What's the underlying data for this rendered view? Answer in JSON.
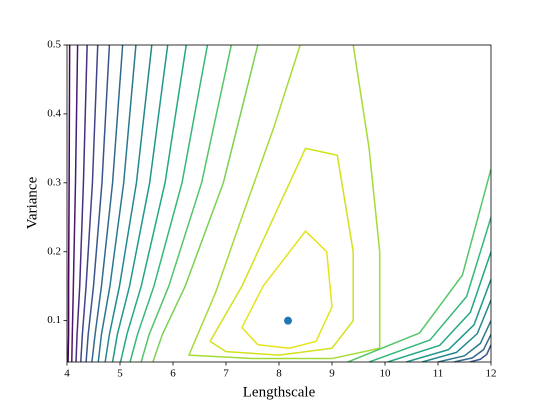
{
  "chart_data": {
    "type": "contour",
    "xlabel": "Lengthscale",
    "ylabel": "Variance",
    "xlim": [
      4,
      12
    ],
    "ylim": [
      0.04,
      0.5
    ],
    "xticks": [
      4,
      5,
      6,
      7,
      8,
      9,
      10,
      11,
      12
    ],
    "yticks": [
      0.1,
      0.2,
      0.3,
      0.4,
      0.5
    ],
    "contours": [
      {
        "color": "#440154",
        "x": [
          4.05,
          4.04,
          4.03,
          4.03,
          4.02
        ],
        "y": [
          0.5,
          0.3,
          0.15,
          0.08,
          0.04
        ]
      },
      {
        "color": "#481a6c",
        "x": [
          4.2,
          4.16,
          4.12,
          4.1,
          4.09
        ],
        "y": [
          0.5,
          0.3,
          0.15,
          0.08,
          0.04
        ]
      },
      {
        "color": "#472f7d",
        "x": [
          4.38,
          4.31,
          4.24,
          4.19,
          4.17
        ],
        "y": [
          0.5,
          0.3,
          0.15,
          0.08,
          0.04
        ]
      },
      {
        "color": "#414487",
        "x": [
          4.58,
          4.48,
          4.36,
          4.29,
          4.26
        ],
        "y": [
          0.5,
          0.3,
          0.15,
          0.08,
          0.04
        ]
      },
      {
        "color": "#39568c",
        "x": [
          4.8,
          4.66,
          4.5,
          4.4,
          4.36
        ],
        "y": [
          0.5,
          0.3,
          0.15,
          0.08,
          0.04
        ]
      },
      {
        "color": "#31688e",
        "x": [
          5.05,
          4.86,
          4.65,
          4.53,
          4.47
        ],
        "y": [
          0.5,
          0.3,
          0.15,
          0.08,
          0.04
        ]
      },
      {
        "color": "#2a788e",
        "x": [
          5.3,
          5.07,
          4.81,
          4.65,
          4.59
        ],
        "y": [
          0.5,
          0.3,
          0.15,
          0.08,
          0.04
        ]
      },
      {
        "color": "#23888e",
        "x": [
          5.6,
          5.31,
          4.99,
          4.8,
          4.72
        ],
        "y": [
          0.5,
          0.3,
          0.15,
          0.08,
          0.04
        ]
      },
      {
        "color": "#1f988b",
        "x": [
          5.9,
          5.56,
          5.18,
          4.95,
          4.86
        ],
        "y": [
          0.5,
          0.3,
          0.15,
          0.08,
          0.04
        ]
      },
      {
        "color": "#22a884",
        "x": [
          6.25,
          5.85,
          5.4,
          5.13,
          5.01
        ],
        "y": [
          0.5,
          0.3,
          0.15,
          0.08,
          0.04
        ]
      },
      {
        "color": "#35b779",
        "x": [
          6.65,
          6.17,
          5.64,
          5.33,
          5.19
        ],
        "y": [
          0.5,
          0.3,
          0.15,
          0.08,
          0.04
        ]
      },
      {
        "color": "#54c568",
        "x": [
          7.1,
          6.54,
          5.92,
          5.55,
          5.4
        ],
        "y": [
          0.5,
          0.3,
          0.15,
          0.08,
          0.04
        ]
      },
      {
        "color": "#7ad151",
        "x": [
          7.6,
          6.95,
          6.23,
          5.8,
          5.62
        ],
        "y": [
          0.5,
          0.3,
          0.15,
          0.08,
          0.04
        ]
      },
      {
        "color": "#a5db36",
        "x": [
          8.4,
          7.9,
          7.3,
          6.8,
          6.3,
          7.5,
          9.0,
          9.9,
          9.9,
          9.7,
          9.4
        ],
        "y": [
          0.5,
          0.38,
          0.25,
          0.14,
          0.05,
          0.045,
          0.045,
          0.06,
          0.2,
          0.35,
          0.5
        ]
      },
      {
        "color": "#d2e21b",
        "x": [
          6.7,
          7.3,
          7.9,
          8.5,
          9.1,
          9.4,
          9.4,
          9.0,
          8.0,
          7.0,
          6.7
        ],
        "y": [
          0.07,
          0.15,
          0.25,
          0.35,
          0.34,
          0.2,
          0.1,
          0.06,
          0.05,
          0.055,
          0.07
        ]
      },
      {
        "color": "#e5e419",
        "x": [
          7.3,
          7.7,
          8.5,
          8.9,
          9.0,
          8.7,
          8.2,
          7.6,
          7.3
        ],
        "y": [
          0.09,
          0.15,
          0.23,
          0.2,
          0.12,
          0.07,
          0.06,
          0.065,
          0.09
        ]
      },
      {
        "color": "#54c568",
        "x": [
          9.3,
          10.65,
          11.46,
          12
        ],
        "y": [
          0.04,
          0.082,
          0.166,
          0.32
        ]
      },
      {
        "color": "#35b779",
        "x": [
          9.7,
          10.85,
          11.54,
          12
        ],
        "y": [
          0.04,
          0.072,
          0.135,
          0.25
        ]
      },
      {
        "color": "#22a884",
        "x": [
          10.05,
          11.03,
          11.61,
          12
        ],
        "y": [
          0.04,
          0.064,
          0.112,
          0.2
        ]
      },
      {
        "color": "#1f988b",
        "x": [
          10.4,
          11.2,
          11.68,
          12
        ],
        "y": [
          0.04,
          0.058,
          0.094,
          0.16
        ]
      },
      {
        "color": "#23888e",
        "x": [
          10.7,
          11.35,
          11.74,
          12
        ],
        "y": [
          0.04,
          0.054,
          0.081,
          0.13
        ]
      },
      {
        "color": "#2a788e",
        "x": [
          11.0,
          11.5,
          11.8,
          12
        ],
        "y": [
          0.04,
          0.049,
          0.067,
          0.1
        ]
      },
      {
        "color": "#31688e",
        "x": [
          11.3,
          11.65,
          11.86,
          12
        ],
        "y": [
          0.04,
          0.046,
          0.058,
          0.08
        ]
      },
      {
        "color": "#39568c",
        "x": [
          11.6,
          11.8,
          11.92,
          12
        ],
        "y": [
          0.04,
          0.044,
          0.051,
          0.065
        ]
      }
    ],
    "points": {
      "color": "#1f77b4",
      "x": [
        8.17
      ],
      "y": [
        0.1
      ]
    }
  }
}
